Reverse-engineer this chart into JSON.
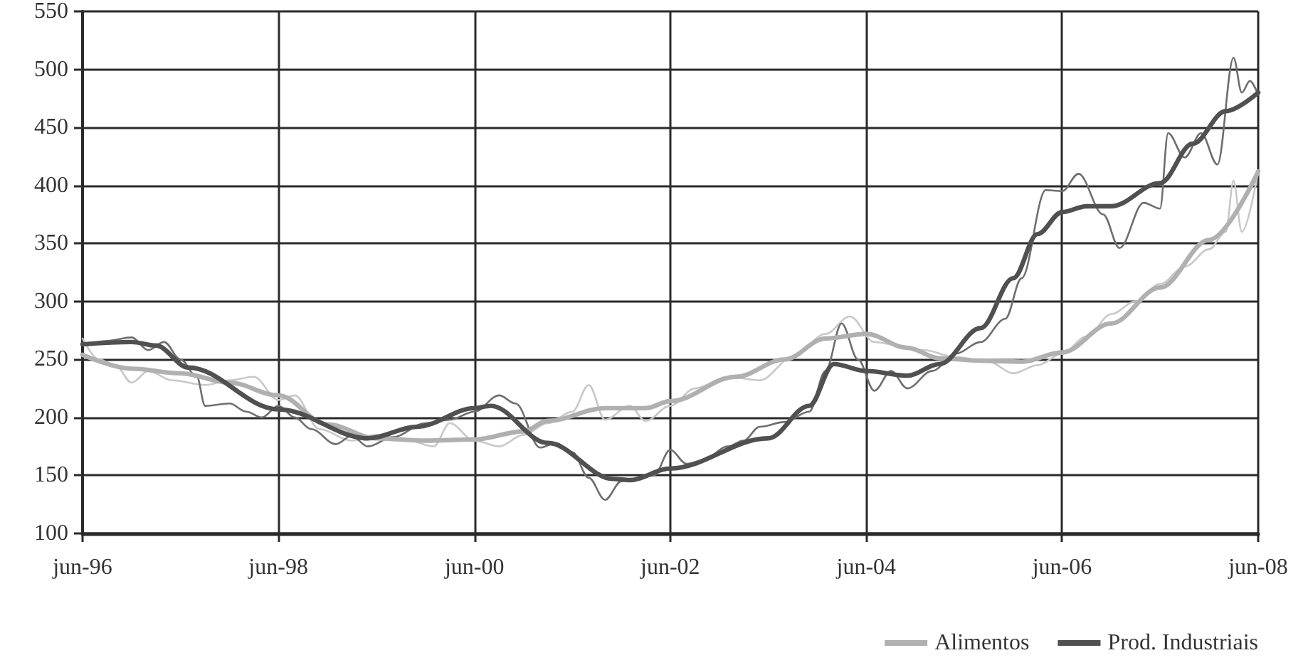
{
  "chart_data": {
    "type": "line",
    "xlim": [
      "1996-06",
      "2008-06"
    ],
    "xticks": [
      {
        "value": "1996-06",
        "label": "jun-96"
      },
      {
        "value": "1998-06",
        "label": "jun-98"
      },
      {
        "value": "2000-06",
        "label": "jun-00"
      },
      {
        "value": "2002-06",
        "label": "jun-02"
      },
      {
        "value": "2004-06",
        "label": "jun-04"
      },
      {
        "value": "2006-06",
        "label": "jun-06"
      },
      {
        "value": "2008-06",
        "label": "jun-08"
      }
    ],
    "ylim": [
      100,
      550
    ],
    "yticks": [
      100,
      150,
      200,
      250,
      300,
      350,
      400,
      450,
      500,
      550
    ],
    "grid": true,
    "legend": "bottom right",
    "marker": "none",
    "series": [
      {
        "color": "#c8c8c8",
        "x": [
          "1996-06",
          "1996-08",
          "1996-10",
          "1996-12",
          "1997-02",
          "1997-05",
          "1997-09",
          "1997-12",
          "1998-03",
          "1998-06",
          "1998-08",
          "1998-11",
          "1999-03",
          "1999-06",
          "1999-10",
          "2000-01",
          "2000-03",
          "2000-06",
          "2000-09",
          "2000-12",
          "2001-03",
          "2001-06",
          "2001-08",
          "2001-10",
          "2002-01",
          "2002-03",
          "2002-06",
          "2002-09",
          "2003-01",
          "2003-05",
          "2003-09",
          "2004-01",
          "2004-04",
          "2004-07",
          "2004-10",
          "2005-01",
          "2005-05",
          "2005-09",
          "2005-12",
          "2006-03",
          "2006-06",
          "2006-09",
          "2006-12",
          "2007-03",
          "2007-06",
          "2007-09",
          "2007-12",
          "2008-02",
          "2008-03",
          "2008-04",
          "2008-06"
        ],
        "values": [
          268,
          250,
          245,
          230,
          240,
          232,
          228,
          232,
          235,
          215,
          219,
          190,
          180,
          185,
          180,
          175,
          195,
          180,
          175,
          185,
          195,
          205,
          228,
          198,
          210,
          197,
          210,
          225,
          235,
          232,
          252,
          272,
          287,
          265,
          262,
          258,
          252,
          248,
          238,
          245,
          255,
          270,
          289,
          300,
          315,
          330,
          345,
          360,
          404,
          360,
          412
        ]
      },
      {
        "color": "#6e6e6e",
        "x": [
          "1996-06",
          "1996-09",
          "1996-12",
          "1997-02",
          "1997-04",
          "1997-06",
          "1997-08",
          "1997-09",
          "1997-12",
          "1998-02",
          "1998-04",
          "1998-06",
          "1998-08",
          "1998-10",
          "1999-01",
          "1999-03",
          "1999-05",
          "1999-08",
          "1999-12",
          "2000-03",
          "2000-06",
          "2000-09",
          "2000-11",
          "2001-02",
          "2001-04",
          "2001-06",
          "2001-08",
          "2001-10",
          "2001-12",
          "2002-02",
          "2002-04",
          "2002-06",
          "2002-08",
          "2002-10",
          "2003-01",
          "2003-03",
          "2003-05",
          "2003-08",
          "2003-11",
          "2004-01",
          "2004-03",
          "2004-05",
          "2004-07",
          "2004-09",
          "2004-11",
          "2005-02",
          "2005-05",
          "2005-08",
          "2005-11",
          "2006-01",
          "2006-04",
          "2006-06",
          "2006-08",
          "2006-11",
          "2007-01",
          "2007-04",
          "2007-06",
          "2007-07",
          "2007-09",
          "2007-11",
          "2008-01",
          "2008-03",
          "2008-04",
          "2008-05",
          "2008-06"
        ],
        "values": [
          262,
          266,
          269,
          258,
          265,
          250,
          235,
          210,
          212,
          205,
          200,
          210,
          200,
          190,
          177,
          184,
          175,
          183,
          195,
          198,
          205,
          219,
          212,
          174,
          178,
          170,
          148,
          129,
          145,
          147,
          150,
          172,
          160,
          163,
          175,
          180,
          192,
          196,
          205,
          240,
          281,
          250,
          223,
          240,
          225,
          240,
          255,
          265,
          285,
          320,
          396,
          395,
          410,
          375,
          346,
          385,
          380,
          445,
          424,
          445,
          418,
          510,
          480,
          490,
          478
        ]
      },
      {
        "name": "Alimentos",
        "color": "#b0b0b0",
        "x": [
          "1996-06",
          "1996-12",
          "1997-06",
          "1997-12",
          "1998-06",
          "1998-12",
          "1999-06",
          "1999-12",
          "2000-06",
          "2000-12",
          "2001-03",
          "2001-10",
          "2002-03",
          "2002-06",
          "2003-02",
          "2003-08",
          "2004-01",
          "2004-06",
          "2004-11",
          "2005-03",
          "2005-08",
          "2006-01",
          "2006-06",
          "2006-12",
          "2007-06",
          "2007-12",
          "2008-06"
        ],
        "values": [
          254,
          242,
          238,
          230,
          219,
          194,
          182,
          180,
          181,
          188,
          197,
          208,
          208,
          214,
          235,
          250,
          268,
          272,
          260,
          251,
          249,
          248,
          256,
          281,
          312,
          353,
          412
        ]
      },
      {
        "name": "Prod. Industriais",
        "color": "#505050",
        "x": [
          "1996-06",
          "1996-12",
          "1997-03",
          "1997-07",
          "1998-06",
          "1999-05",
          "1999-11",
          "2000-06",
          "2000-08",
          "2001-03",
          "2001-11",
          "2002-01",
          "2002-06",
          "2003-06",
          "2003-11",
          "2004-02",
          "2004-06",
          "2004-11",
          "2005-03",
          "2005-08",
          "2005-12",
          "2006-03",
          "2006-06",
          "2006-09",
          "2006-12",
          "2007-06",
          "2007-10",
          "2008-02",
          "2008-06"
        ],
        "values": [
          263,
          265,
          262,
          243,
          207,
          182,
          192,
          208,
          210,
          178,
          147,
          146,
          156,
          182,
          210,
          246,
          240,
          236,
          246,
          277,
          320,
          358,
          377,
          382,
          382,
          402,
          436,
          464,
          480
        ]
      }
    ]
  }
}
